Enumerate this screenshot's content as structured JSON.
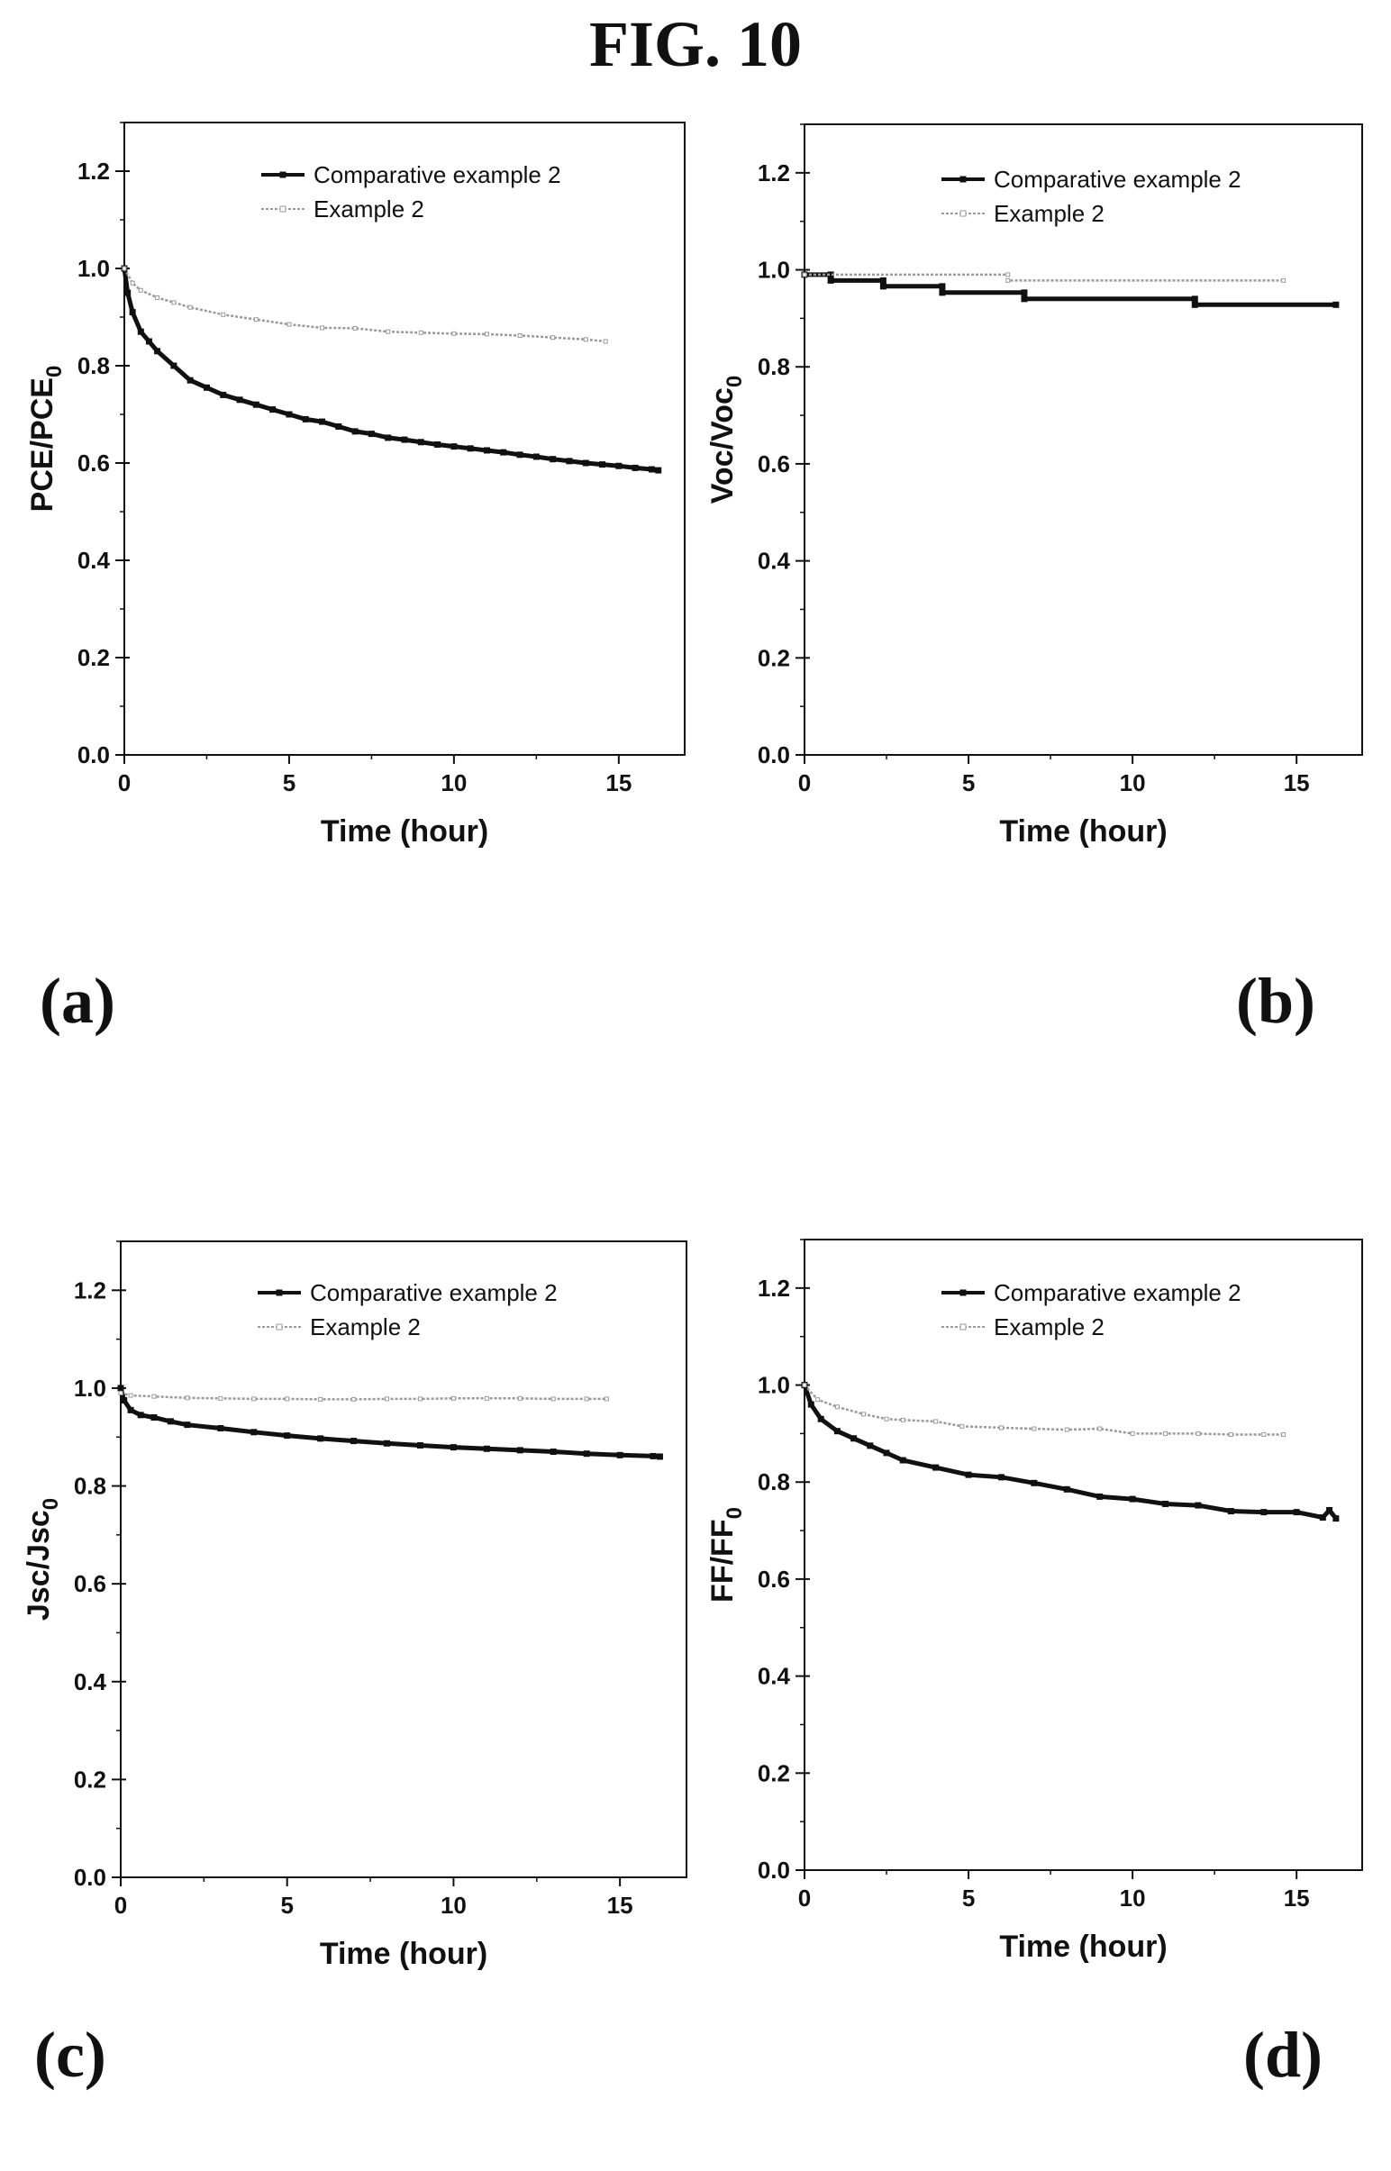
{
  "figure_title": "FIG. 10",
  "chart_data": [
    {
      "panel_label": "(a)",
      "type": "line",
      "xlabel": "Time (hour)",
      "ylabel": "PCE/PCE",
      "ylabel_sub": "0",
      "xlim": [
        0,
        17
      ],
      "ylim": [
        0.0,
        1.3
      ],
      "xticks": [
        0,
        5,
        10,
        15
      ],
      "yticks": [
        0.0,
        0.2,
        0.4,
        0.6,
        0.8,
        1.0,
        1.2
      ],
      "legend": "top-right",
      "series": [
        {
          "name": "Comparative example 2",
          "color": "#111111",
          "x": [
            0,
            0.1,
            0.25,
            0.5,
            0.75,
            1,
            1.5,
            2,
            2.5,
            3,
            3.5,
            4,
            4.5,
            5,
            5.5,
            6,
            6.5,
            7,
            7.5,
            8,
            8.5,
            9,
            9.5,
            10,
            10.5,
            11,
            11.5,
            12,
            12.5,
            13,
            13.5,
            14,
            14.5,
            15,
            15.5,
            16,
            16.2
          ],
          "y": [
            1.0,
            0.95,
            0.91,
            0.87,
            0.85,
            0.83,
            0.8,
            0.77,
            0.755,
            0.74,
            0.73,
            0.72,
            0.71,
            0.7,
            0.69,
            0.685,
            0.675,
            0.665,
            0.66,
            0.652,
            0.648,
            0.643,
            0.638,
            0.634,
            0.63,
            0.626,
            0.622,
            0.617,
            0.613,
            0.608,
            0.604,
            0.6,
            0.597,
            0.594,
            0.59,
            0.587,
            0.585
          ]
        },
        {
          "name": "Example 2",
          "color": "#9a9a9a",
          "x": [
            0,
            0.25,
            0.5,
            1,
            1.5,
            2,
            3,
            4,
            5,
            6,
            7,
            8,
            9,
            10,
            11,
            12,
            13,
            14,
            14.6
          ],
          "y": [
            1.0,
            0.97,
            0.955,
            0.94,
            0.93,
            0.92,
            0.905,
            0.895,
            0.885,
            0.878,
            0.877,
            0.87,
            0.868,
            0.866,
            0.865,
            0.862,
            0.858,
            0.854,
            0.85
          ]
        }
      ]
    },
    {
      "panel_label": "(b)",
      "type": "line",
      "xlabel": "Time (hour)",
      "ylabel": "Voc/Voc",
      "ylabel_sub": "0",
      "xlim": [
        0,
        17
      ],
      "ylim": [
        0.0,
        1.3
      ],
      "xticks": [
        0,
        5,
        10,
        15
      ],
      "yticks": [
        0.0,
        0.2,
        0.4,
        0.6,
        0.8,
        1.0,
        1.2
      ],
      "legend": "top-right",
      "series": [
        {
          "name": "Comparative example 2",
          "color": "#111111",
          "x": [
            0,
            0.8,
            0.8,
            2.4,
            2.4,
            4.2,
            4.2,
            6.7,
            6.7,
            11.9,
            11.9,
            16.2
          ],
          "y": [
            0.99,
            0.99,
            0.978,
            0.978,
            0.966,
            0.966,
            0.953,
            0.953,
            0.94,
            0.94,
            0.928,
            0.928
          ]
        },
        {
          "name": "Example 2",
          "color": "#9a9a9a",
          "x": [
            0,
            6.2,
            6.2,
            14.6
          ],
          "y": [
            0.99,
            0.99,
            0.978,
            0.978
          ]
        }
      ]
    },
    {
      "panel_label": "(c)",
      "type": "line",
      "xlabel": "Time (hour)",
      "ylabel": "Jsc/Jsc",
      "ylabel_sub": "0",
      "xlim": [
        0,
        17
      ],
      "ylim": [
        0.0,
        1.3
      ],
      "xticks": [
        0,
        5,
        10,
        15
      ],
      "yticks": [
        0.0,
        0.2,
        0.4,
        0.6,
        0.8,
        1.0,
        1.2
      ],
      "legend": "top-right",
      "series": [
        {
          "name": "Comparative example 2",
          "color": "#111111",
          "x": [
            0,
            0.1,
            0.3,
            0.6,
            1,
            1.5,
            2,
            3,
            4,
            5,
            6,
            7,
            8,
            9,
            10,
            11,
            12,
            13,
            14,
            15,
            16,
            16.2
          ],
          "y": [
            1.0,
            0.975,
            0.955,
            0.945,
            0.94,
            0.932,
            0.925,
            0.918,
            0.91,
            0.903,
            0.897,
            0.892,
            0.887,
            0.883,
            0.879,
            0.876,
            0.873,
            0.87,
            0.866,
            0.863,
            0.861,
            0.86
          ]
        },
        {
          "name": "Example 2",
          "color": "#9a9a9a",
          "x": [
            0,
            0.3,
            1,
            2,
            3,
            4,
            5,
            6,
            7,
            8,
            9,
            10,
            11,
            12,
            13,
            14,
            14.6
          ],
          "y": [
            0.99,
            0.985,
            0.983,
            0.98,
            0.979,
            0.978,
            0.978,
            0.977,
            0.977,
            0.978,
            0.978,
            0.979,
            0.979,
            0.979,
            0.978,
            0.978,
            0.978
          ]
        }
      ]
    },
    {
      "panel_label": "(d)",
      "type": "line",
      "xlabel": "Time (hour)",
      "ylabel": "FF/FF",
      "ylabel_sub": "0",
      "xlim": [
        0,
        17
      ],
      "ylim": [
        0.0,
        1.3
      ],
      "xticks": [
        0,
        5,
        10,
        15
      ],
      "yticks": [
        0.0,
        0.2,
        0.4,
        0.6,
        0.8,
        1.0,
        1.2
      ],
      "legend": "top-right",
      "series": [
        {
          "name": "Comparative example 2",
          "color": "#111111",
          "x": [
            0,
            0.2,
            0.5,
            1,
            1.5,
            2,
            2.5,
            3,
            4,
            5,
            6,
            7,
            8,
            9,
            10,
            11,
            12,
            13,
            14,
            15,
            15.8,
            16,
            16.2
          ],
          "y": [
            1.0,
            0.96,
            0.93,
            0.905,
            0.89,
            0.875,
            0.86,
            0.845,
            0.83,
            0.815,
            0.81,
            0.798,
            0.785,
            0.77,
            0.765,
            0.755,
            0.752,
            0.74,
            0.738,
            0.738,
            0.727,
            0.742,
            0.725
          ]
        },
        {
          "name": "Example 2",
          "color": "#9a9a9a",
          "x": [
            0,
            0.4,
            1,
            1.8,
            2.5,
            3,
            4,
            4.8,
            6,
            7,
            8,
            9,
            10,
            11,
            12,
            13,
            14,
            14.6
          ],
          "y": [
            1.0,
            0.97,
            0.955,
            0.94,
            0.93,
            0.928,
            0.925,
            0.915,
            0.912,
            0.91,
            0.908,
            0.91,
            0.9,
            0.9,
            0.9,
            0.898,
            0.898,
            0.898
          ]
        }
      ]
    }
  ]
}
